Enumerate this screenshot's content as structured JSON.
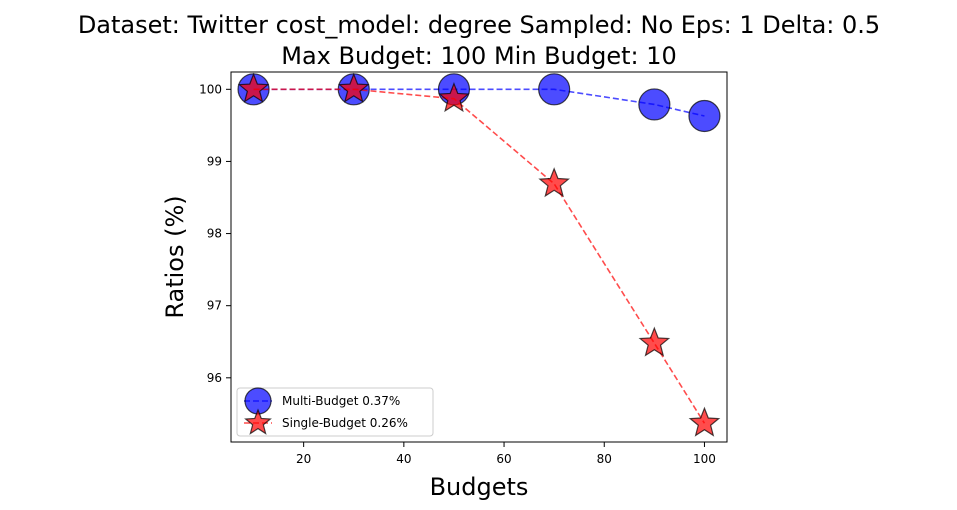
{
  "chart_data": {
    "type": "line",
    "title_line1": "Dataset: Twitter cost_model: degree Sampled: No Eps: 1 Delta: 0.5",
    "title_line2": "Max Budget: 100 Min Budget: 10",
    "xlabel": "Budgets",
    "ylabel": "Ratios (%)",
    "xlim": [
      5.5,
      104.5
    ],
    "ylim": [
      95.11,
      100.24
    ],
    "xticks": [
      20,
      40,
      60,
      80,
      100
    ],
    "yticks": [
      96,
      97,
      98,
      99,
      100
    ],
    "grid": false,
    "legend_position": "lower-left",
    "x": [
      10,
      30,
      50,
      70,
      90,
      100
    ],
    "series": [
      {
        "name": "Multi-Budget 0.37%",
        "marker": "circle",
        "color": "#0000ff",
        "values": [
          100,
          100,
          100,
          100,
          99.79,
          99.63
        ]
      },
      {
        "name": "Single-Budget 0.26%",
        "marker": "star",
        "color": "#ff0000",
        "values": [
          100,
          100,
          99.87,
          98.69,
          96.48,
          95.37
        ]
      }
    ]
  }
}
